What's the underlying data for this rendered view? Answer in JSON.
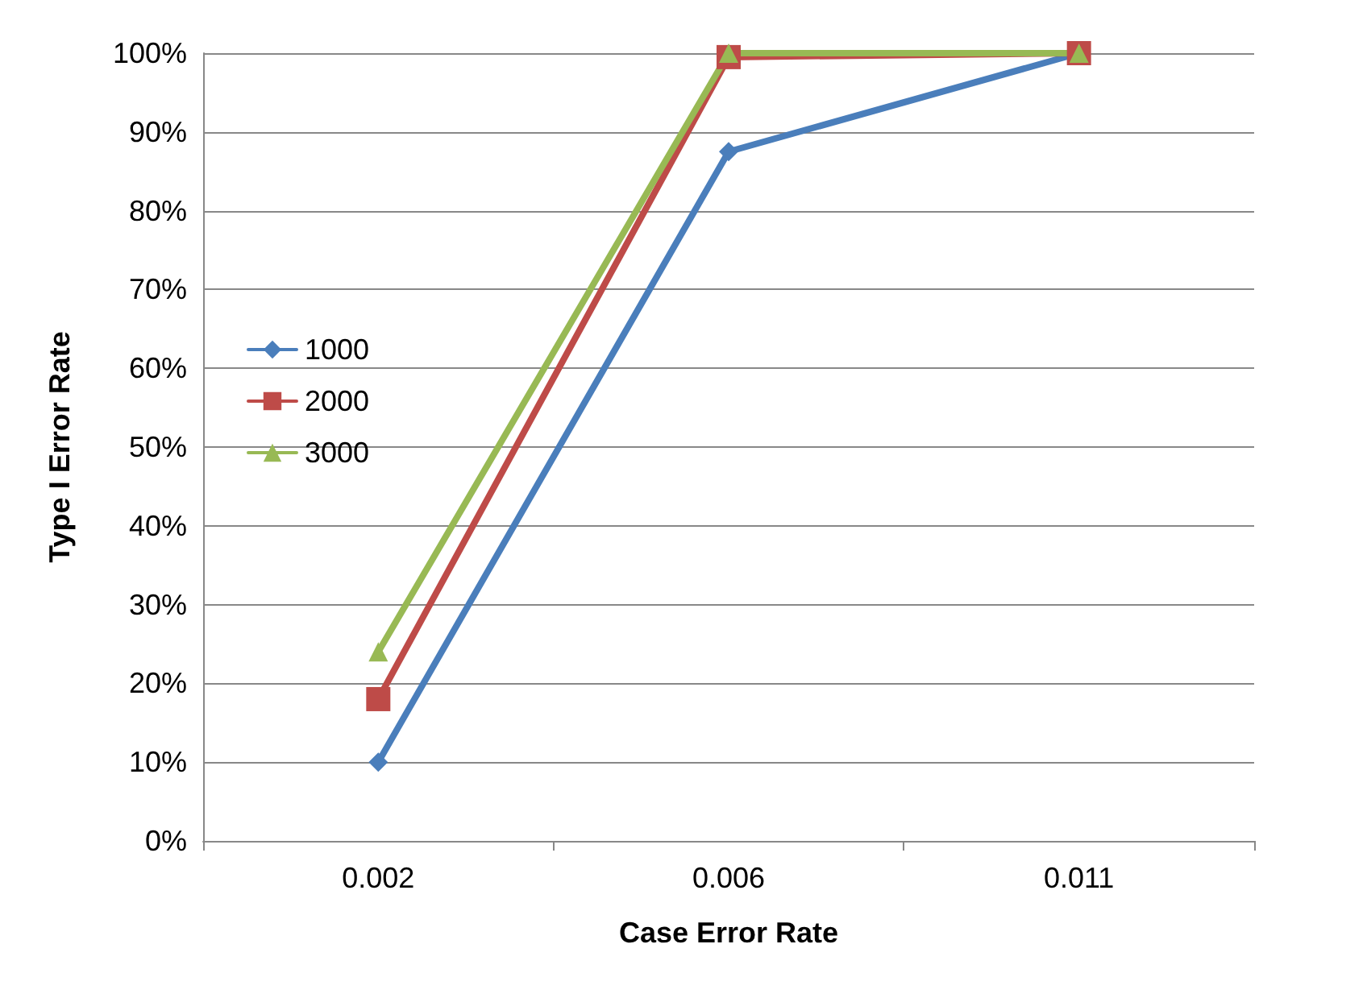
{
  "chart_data": {
    "type": "line",
    "xlabel": "Case Error Rate",
    "ylabel": "Type I Error Rate",
    "categories": [
      "0.002",
      "0.006",
      "0.011"
    ],
    "series": [
      {
        "name": "1000",
        "color": "#4a7ebb",
        "marker": "diamond",
        "values": [
          10,
          87.5,
          100
        ]
      },
      {
        "name": "2000",
        "color": "#be4b48",
        "marker": "square",
        "values": [
          18,
          99.5,
          100
        ]
      },
      {
        "name": "3000",
        "color": "#98b954",
        "marker": "triangle",
        "values": [
          24,
          100,
          100
        ]
      }
    ],
    "ylim": [
      0,
      100
    ],
    "yticks": [
      {
        "value": 0,
        "label": "0%"
      },
      {
        "value": 10,
        "label": "10%"
      },
      {
        "value": 20,
        "label": "20%"
      },
      {
        "value": 30,
        "label": "30%"
      },
      {
        "value": 40,
        "label": "40%"
      },
      {
        "value": 50,
        "label": "50%"
      },
      {
        "value": 60,
        "label": "60%"
      },
      {
        "value": 70,
        "label": "70%"
      },
      {
        "value": 80,
        "label": "80%"
      },
      {
        "value": 90,
        "label": "90%"
      },
      {
        "value": 100,
        "label": "100%"
      }
    ],
    "grid": "y",
    "legend": "left",
    "line_style": "solid"
  }
}
